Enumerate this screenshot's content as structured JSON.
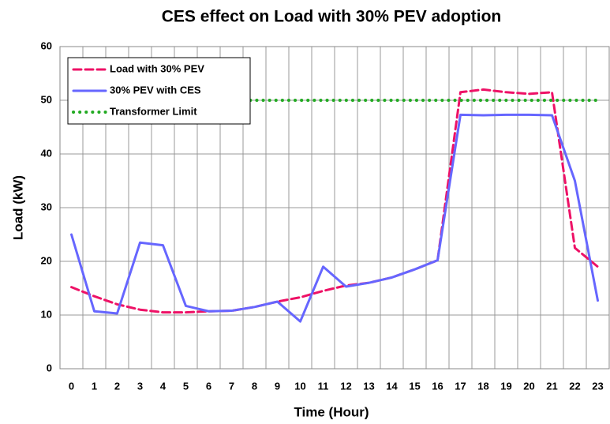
{
  "chart_data": {
    "type": "line",
    "title": "CES effect on Load with 30% PEV adoption",
    "xlabel": "Time (Hour)",
    "ylabel": "Load (kW)",
    "categories": [
      "0",
      "1",
      "2",
      "3",
      "4",
      "5",
      "6",
      "7",
      "8",
      "9",
      "10",
      "11",
      "12",
      "13",
      "14",
      "15",
      "16",
      "17",
      "18",
      "19",
      "20",
      "21",
      "22",
      "23"
    ],
    "series": [
      {
        "name": "Load with 30% PEV",
        "color": "#ee1166",
        "style": "dashed",
        "values": [
          15.2,
          13.5,
          12,
          11,
          10.5,
          10.5,
          10.7,
          10.8,
          11.5,
          12.5,
          13.3,
          14.5,
          15.5,
          16,
          17,
          18.5,
          20.2,
          51.5,
          52,
          51.5,
          51.2,
          51.5,
          22.5,
          19
        ]
      },
      {
        "name": "30% PEV with CES",
        "color": "#6666ff",
        "style": "solid",
        "values": [
          25,
          10.7,
          10.3,
          23.5,
          23,
          11.7,
          10.7,
          10.8,
          11.5,
          12.5,
          8.8,
          19,
          15.3,
          16,
          17,
          18.5,
          20.2,
          47.3,
          47.2,
          47.3,
          47.3,
          47.2,
          35,
          12.7
        ]
      },
      {
        "name": "Transformer Limit",
        "color": "#22aa22",
        "style": "dotted",
        "values": [
          50,
          50,
          50,
          50,
          50,
          50,
          50,
          50,
          50,
          50,
          50,
          50,
          50,
          50,
          50,
          50,
          50,
          50,
          50,
          50,
          50,
          50,
          50,
          50
        ]
      }
    ],
    "ylim": [
      0,
      60
    ],
    "yticks": [
      0,
      10,
      20,
      30,
      40,
      50,
      60
    ],
    "grid": true,
    "legend": "upper left"
  }
}
